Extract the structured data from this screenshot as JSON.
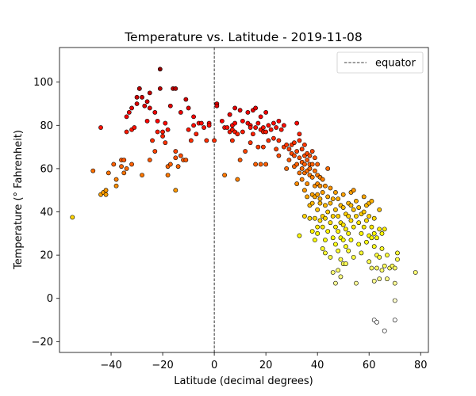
{
  "chart_data": {
    "type": "scatter",
    "title": "Temperature vs. Latitude - 2019-11-08",
    "xlabel": "Latitude (decimal degrees)",
    "ylabel": "Temperature (° Fahrenheit)",
    "xlim": [
      -60,
      83
    ],
    "ylim": [
      -25,
      116
    ],
    "xticks": [
      -40,
      -20,
      0,
      20,
      40,
      60,
      80
    ],
    "yticks": [
      -20,
      0,
      20,
      40,
      60,
      80,
      100
    ],
    "xtick_labels": [
      "−40",
      "−20",
      "0",
      "20",
      "40",
      "60",
      "80"
    ],
    "ytick_labels": [
      "−20",
      "0",
      "20",
      "40",
      "60",
      "80",
      "100"
    ],
    "grid": false,
    "legend": {
      "position": "top-right",
      "entries": [
        "equator"
      ]
    },
    "reference_line": {
      "x": 0,
      "style": "dashed",
      "label": "equator"
    },
    "color_scale": "hot (temperature mapped to color: high = dark red, low = white)",
    "colors": {
      "edge": "#000000",
      "reference_line": "#000000"
    },
    "points": [
      [
        -55,
        37.5
      ],
      [
        -47,
        59
      ],
      [
        -44,
        79
      ],
      [
        -44,
        48
      ],
      [
        -43,
        49
      ],
      [
        -42,
        50
      ],
      [
        -42,
        48
      ],
      [
        -41,
        58
      ],
      [
        -39,
        62
      ],
      [
        -38,
        55
      ],
      [
        -38,
        52
      ],
      [
        -36,
        64
      ],
      [
        -36,
        61
      ],
      [
        -35,
        58
      ],
      [
        -35,
        64
      ],
      [
        -34,
        84
      ],
      [
        -34,
        77
      ],
      [
        -34,
        60
      ],
      [
        -33,
        86
      ],
      [
        -32,
        78
      ],
      [
        -32,
        88
      ],
      [
        -32,
        62
      ],
      [
        -31,
        79
      ],
      [
        -30,
        90
      ],
      [
        -30,
        93
      ],
      [
        -29,
        97
      ],
      [
        -29,
        97
      ],
      [
        -28,
        93
      ],
      [
        -28,
        57
      ],
      [
        -27,
        89
      ],
      [
        -26,
        91
      ],
      [
        -26,
        82
      ],
      [
        -25,
        64
      ],
      [
        -25,
        95
      ],
      [
        -25,
        88
      ],
      [
        -24,
        73
      ],
      [
        -23,
        86
      ],
      [
        -23,
        68
      ],
      [
        -22,
        82
      ],
      [
        -22,
        77
      ],
      [
        -21,
        97
      ],
      [
        -21,
        106
      ],
      [
        -20,
        75
      ],
      [
        -20,
        77
      ],
      [
        -19,
        72
      ],
      [
        -19,
        81
      ],
      [
        -18,
        57
      ],
      [
        -18,
        61
      ],
      [
        -18,
        78
      ],
      [
        -17,
        89
      ],
      [
        -17,
        62
      ],
      [
        -16,
        97
      ],
      [
        -15,
        97
      ],
      [
        -15,
        50
      ],
      [
        -15,
        65
      ],
      [
        -15,
        68
      ],
      [
        -14,
        61
      ],
      [
        -13,
        86
      ],
      [
        -13,
        66
      ],
      [
        -12,
        64
      ],
      [
        -11,
        64
      ],
      [
        -11,
        92
      ],
      [
        -10,
        78
      ],
      [
        -10,
        88
      ],
      [
        -9,
        73
      ],
      [
        -8,
        84
      ],
      [
        -8,
        80
      ],
      [
        -7,
        76
      ],
      [
        -6,
        81
      ],
      [
        -5,
        81
      ],
      [
        -4,
        79
      ],
      [
        -3,
        73
      ],
      [
        -2,
        81
      ],
      [
        -2,
        80
      ],
      [
        0,
        73
      ],
      [
        1,
        90
      ],
      [
        1,
        89
      ],
      [
        3,
        82
      ],
      [
        4,
        79
      ],
      [
        4,
        57
      ],
      [
        5,
        79
      ],
      [
        6,
        77
      ],
      [
        6,
        85
      ],
      [
        6,
        85
      ],
      [
        7,
        73
      ],
      [
        7,
        80
      ],
      [
        7,
        78
      ],
      [
        8,
        77
      ],
      [
        8,
        81
      ],
      [
        8,
        88
      ],
      [
        9,
        76
      ],
      [
        9,
        55
      ],
      [
        10,
        87
      ],
      [
        10,
        64
      ],
      [
        11,
        82
      ],
      [
        11,
        77
      ],
      [
        12,
        68
      ],
      [
        13,
        81
      ],
      [
        13,
        86
      ],
      [
        14,
        80
      ],
      [
        14,
        79
      ],
      [
        14,
        72
      ],
      [
        15,
        87
      ],
      [
        15,
        76
      ],
      [
        16,
        88
      ],
      [
        16,
        62
      ],
      [
        16,
        79
      ],
      [
        17,
        70
      ],
      [
        17,
        81
      ],
      [
        18,
        62
      ],
      [
        18,
        78
      ],
      [
        18,
        84
      ],
      [
        19,
        70
      ],
      [
        19,
        77
      ],
      [
        19,
        79
      ],
      [
        20,
        77
      ],
      [
        20,
        62
      ],
      [
        20,
        86
      ],
      [
        21,
        80
      ],
      [
        21,
        73
      ],
      [
        22,
        78
      ],
      [
        23,
        74
      ],
      [
        23,
        81
      ],
      [
        24,
        69
      ],
      [
        24,
        79
      ],
      [
        25,
        73
      ],
      [
        25,
        66
      ],
      [
        25,
        82
      ],
      [
        26,
        78
      ],
      [
        27,
        80
      ],
      [
        27,
        70
      ],
      [
        28,
        71
      ],
      [
        28,
        60
      ],
      [
        29,
        64
      ],
      [
        29,
        69
      ],
      [
        30,
        67
      ],
      [
        30,
        71
      ],
      [
        31,
        66
      ],
      [
        31,
        61
      ],
      [
        31,
        72
      ],
      [
        32,
        62
      ],
      [
        32,
        53
      ],
      [
        32,
        68
      ],
      [
        32,
        81
      ],
      [
        33,
        29
      ],
      [
        33,
        65
      ],
      [
        33,
        58
      ],
      [
        33,
        76
      ],
      [
        33,
        73
      ],
      [
        34,
        63
      ],
      [
        34,
        69
      ],
      [
        34,
        60
      ],
      [
        34,
        55
      ],
      [
        35,
        38
      ],
      [
        35,
        50
      ],
      [
        35,
        66
      ],
      [
        35,
        62
      ],
      [
        35,
        58
      ],
      [
        35,
        71
      ],
      [
        36,
        47
      ],
      [
        36,
        59
      ],
      [
        36,
        67
      ],
      [
        36,
        64
      ],
      [
        36,
        53
      ],
      [
        37,
        37
      ],
      [
        37,
        43
      ],
      [
        37,
        60
      ],
      [
        37,
        62
      ],
      [
        37,
        66
      ],
      [
        37,
        57
      ],
      [
        38,
        31
      ],
      [
        38,
        48
      ],
      [
        38,
        56
      ],
      [
        38,
        62
      ],
      [
        38,
        68
      ],
      [
        38,
        44
      ],
      [
        39,
        37
      ],
      [
        39,
        27
      ],
      [
        39,
        52
      ],
      [
        39,
        59
      ],
      [
        39,
        65
      ],
      [
        39,
        47
      ],
      [
        40,
        30
      ],
      [
        40,
        33
      ],
      [
        40,
        41
      ],
      [
        40,
        48
      ],
      [
        40,
        53
      ],
      [
        40,
        57
      ],
      [
        40,
        62
      ],
      [
        41,
        36
      ],
      [
        41,
        46
      ],
      [
        41,
        52
      ],
      [
        41,
        56
      ],
      [
        41,
        44
      ],
      [
        42,
        23
      ],
      [
        42,
        33
      ],
      [
        42,
        38
      ],
      [
        42,
        49
      ],
      [
        42,
        55
      ],
      [
        43,
        27
      ],
      [
        43,
        37
      ],
      [
        43,
        43
      ],
      [
        43,
        52
      ],
      [
        43,
        21
      ],
      [
        44,
        31
      ],
      [
        44,
        40
      ],
      [
        44,
        47
      ],
      [
        44,
        60
      ],
      [
        45,
        19
      ],
      [
        45,
        35
      ],
      [
        45,
        44
      ],
      [
        45,
        51
      ],
      [
        46,
        28
      ],
      [
        46,
        38
      ],
      [
        46,
        46
      ],
      [
        46,
        12
      ],
      [
        47,
        7
      ],
      [
        47,
        25
      ],
      [
        47,
        33
      ],
      [
        47,
        41
      ],
      [
        47,
        49
      ],
      [
        48,
        13
      ],
      [
        48,
        22
      ],
      [
        48,
        31
      ],
      [
        48,
        38
      ],
      [
        48,
        46
      ],
      [
        49,
        10
      ],
      [
        49,
        18
      ],
      [
        49,
        28
      ],
      [
        49,
        35
      ],
      [
        49,
        43
      ],
      [
        50,
        16
      ],
      [
        50,
        27
      ],
      [
        50,
        34
      ],
      [
        50,
        42
      ],
      [
        50,
        48
      ],
      [
        51,
        16
      ],
      [
        51,
        24
      ],
      [
        51,
        32
      ],
      [
        51,
        39
      ],
      [
        52,
        22
      ],
      [
        52,
        30
      ],
      [
        52,
        38
      ],
      [
        52,
        44
      ],
      [
        53,
        27
      ],
      [
        53,
        36
      ],
      [
        53,
        43
      ],
      [
        53,
        49
      ],
      [
        54,
        19
      ],
      [
        54,
        33
      ],
      [
        54,
        41
      ],
      [
        54,
        50
      ],
      [
        55,
        7
      ],
      [
        55,
        38
      ],
      [
        55,
        45
      ],
      [
        56,
        25
      ],
      [
        56,
        35
      ],
      [
        56,
        42
      ],
      [
        57,
        21
      ],
      [
        57,
        30
      ],
      [
        57,
        39
      ],
      [
        58,
        33
      ],
      [
        58,
        40
      ],
      [
        58,
        47
      ],
      [
        59,
        26
      ],
      [
        59,
        36
      ],
      [
        59,
        43
      ],
      [
        60,
        17
      ],
      [
        60,
        29
      ],
      [
        60,
        38
      ],
      [
        60,
        44
      ],
      [
        61,
        14
      ],
      [
        61,
        28
      ],
      [
        61,
        33
      ],
      [
        61,
        45
      ],
      [
        62,
        8
      ],
      [
        62,
        -10
      ],
      [
        62,
        24
      ],
      [
        62,
        30
      ],
      [
        62,
        37
      ],
      [
        63,
        -11
      ],
      [
        63,
        14
      ],
      [
        63,
        20
      ],
      [
        63,
        28
      ],
      [
        64,
        9
      ],
      [
        64,
        19
      ],
      [
        64,
        32
      ],
      [
        64,
        41
      ],
      [
        65,
        13
      ],
      [
        65,
        23
      ],
      [
        65,
        30
      ],
      [
        66,
        -15
      ],
      [
        66,
        15
      ],
      [
        66,
        32
      ],
      [
        67,
        9
      ],
      [
        67,
        20
      ],
      [
        68,
        14
      ],
      [
        69,
        15
      ],
      [
        70,
        -10
      ],
      [
        70,
        7
      ],
      [
        70,
        14
      ],
      [
        70,
        -1
      ],
      [
        71,
        21
      ],
      [
        71,
        18
      ],
      [
        78,
        12
      ]
    ]
  }
}
